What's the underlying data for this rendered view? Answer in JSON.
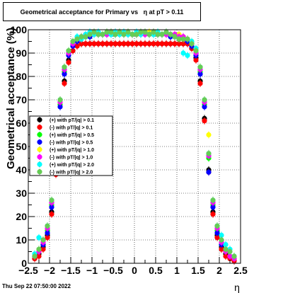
{
  "chart_data": {
    "type": "scatter",
    "title": "Geometrical acceptance for Primary vs   η at pT > 0.11",
    "xlabel": "η",
    "ylabel": "Geometrical acceptance (%)",
    "xlim": [
      -2.5,
      2.5
    ],
    "ylim": [
      0,
      100
    ],
    "x_ticks": [
      -2.5,
      -2,
      -1.5,
      -1,
      -0.5,
      0,
      0.5,
      1,
      1.5,
      2,
      2.5
    ],
    "x_tick_labels": [
      "−2.5",
      "−2",
      "−1.5",
      "−1",
      "−0.5",
      "0",
      "0.5",
      "1",
      "1.5",
      "2",
      "2.5"
    ],
    "y_ticks": [
      0,
      10,
      20,
      30,
      40,
      50,
      60,
      70,
      80,
      90,
      100
    ],
    "grid": true,
    "legend_position": "center-left",
    "series": [
      {
        "name": "(+) with pT/|q| > 0.1",
        "color": "#000000",
        "x": [
          -2.35,
          -2.25,
          -2.15,
          -2.05,
          -1.95,
          -1.85,
          -1.75,
          -1.65,
          -1.55,
          -1.45,
          -1.35,
          -1.25,
          -1.15,
          -1.05,
          -0.95,
          -0.85,
          -0.75,
          -0.65,
          -0.55,
          -0.45,
          -0.35,
          -0.25,
          -0.15,
          -0.05,
          0.05,
          0.15,
          0.25,
          0.35,
          0.45,
          0.55,
          0.65,
          0.75,
          0.85,
          0.95,
          1.05,
          1.15,
          1.25,
          1.35,
          1.45,
          1.55,
          1.65,
          1.75,
          1.85,
          1.95,
          2.05,
          2.15,
          2.25,
          2.35
        ],
        "y": [
          2,
          4,
          7,
          12,
          22,
          40,
          62,
          78,
          87,
          91,
          93,
          94,
          94,
          94,
          94,
          94,
          94,
          94,
          94,
          94,
          94,
          94,
          94,
          94,
          94,
          94,
          94,
          94,
          94,
          94,
          94,
          94,
          94,
          94,
          94,
          94,
          94,
          92,
          88,
          78,
          62,
          40,
          22,
          12,
          7,
          4,
          2,
          1
        ]
      },
      {
        "name": "(-) with pT/|q| > 0.1",
        "color": "#ff0000",
        "x": [
          -2.35,
          -2.25,
          -2.15,
          -2.05,
          -1.95,
          -1.85,
          -1.75,
          -1.65,
          -1.55,
          -1.45,
          -1.35,
          -1.25,
          -1.15,
          -1.05,
          -0.95,
          -0.85,
          -0.75,
          -0.65,
          -0.55,
          -0.45,
          -0.35,
          -0.25,
          -0.15,
          -0.05,
          0.05,
          0.15,
          0.25,
          0.35,
          0.45,
          0.55,
          0.65,
          0.75,
          0.85,
          0.95,
          1.05,
          1.15,
          1.25,
          1.35,
          1.45,
          1.55,
          1.65,
          1.75,
          1.85,
          1.95,
          2.05,
          2.15,
          2.25,
          2.35
        ],
        "y": [
          2,
          3,
          6,
          11,
          21,
          38,
          60,
          77,
          86,
          91,
          93,
          94,
          94,
          94,
          94,
          94,
          94,
          94,
          94,
          94,
          94,
          94,
          94,
          94,
          94,
          94,
          94,
          94,
          94,
          94,
          94,
          94,
          94,
          94,
          94,
          94,
          94,
          92,
          87,
          77,
          61,
          39,
          21,
          11,
          6,
          3,
          2,
          1
        ]
      },
      {
        "name": "(+) with pT/|q| > 0.5",
        "color": "#00ff00",
        "x": [
          -2.35,
          -2.25,
          -2.15,
          -2.05,
          -1.95,
          -1.85,
          -1.75,
          -1.65,
          -1.55,
          -1.45,
          -1.35,
          -1.25,
          -1.15,
          -1.05,
          -0.95,
          -0.85,
          -0.75,
          -0.65,
          -0.55,
          -0.45,
          -0.35,
          -0.25,
          -0.15,
          -0.05,
          0.05,
          0.15,
          0.25,
          0.35,
          0.45,
          0.55,
          0.65,
          0.75,
          0.85,
          0.95,
          1.05,
          1.15,
          1.25,
          1.35,
          1.45,
          1.55,
          1.65,
          1.75,
          1.85,
          1.95,
          2.05,
          2.15,
          2.25,
          2.35
        ],
        "y": [
          3,
          5,
          8,
          14,
          25,
          45,
          68,
          82,
          90,
          94,
          96,
          97,
          97,
          98,
          98,
          98,
          98,
          98,
          98,
          98,
          98,
          98,
          98,
          98,
          98,
          98,
          98,
          98,
          98,
          98,
          98,
          98,
          98,
          97,
          97,
          97,
          96,
          94,
          90,
          82,
          68,
          45,
          25,
          14,
          8,
          5,
          3,
          2
        ]
      },
      {
        "name": "(-) with pT/|q| > 0.5",
        "color": "#0000ff",
        "x": [
          -2.35,
          -2.25,
          -2.15,
          -2.05,
          -1.95,
          -1.85,
          -1.75,
          -1.65,
          -1.55,
          -1.45,
          -1.35,
          -1.25,
          -1.15,
          -1.05,
          -0.95,
          -0.85,
          -0.75,
          -0.65,
          -0.55,
          -0.45,
          -0.35,
          -0.25,
          -0.15,
          -0.05,
          0.05,
          0.15,
          0.25,
          0.35,
          0.45,
          0.55,
          0.65,
          0.75,
          0.85,
          0.95,
          1.05,
          1.15,
          1.25,
          1.35,
          1.45,
          1.55,
          1.65,
          1.75,
          1.85,
          1.95,
          2.05,
          2.15,
          2.25,
          2.35
        ],
        "y": [
          3,
          5,
          8,
          13,
          24,
          44,
          67,
          81,
          89,
          93,
          95,
          97,
          97,
          97,
          98,
          98,
          98,
          98,
          98,
          98,
          98,
          98,
          98,
          98,
          98,
          98,
          98,
          98,
          98,
          98,
          98,
          98,
          97,
          97,
          97,
          97,
          95,
          93,
          89,
          81,
          67,
          39,
          24,
          13,
          8,
          5,
          3,
          2
        ]
      },
      {
        "name": "(+) with pT/|q| > 1.0",
        "color": "#ffff00",
        "x": [
          -2.35,
          -2.25,
          -2.15,
          -2.05,
          -1.95,
          -1.85,
          -1.75,
          -1.65,
          -1.55,
          -1.45,
          -1.35,
          -1.25,
          -1.15,
          -1.05,
          -0.95,
          -0.85,
          -0.75,
          -0.65,
          -0.55,
          -0.45,
          -0.35,
          -0.25,
          -0.15,
          -0.05,
          0.05,
          0.15,
          0.25,
          0.35,
          0.45,
          0.55,
          0.65,
          0.75,
          0.85,
          0.95,
          1.05,
          1.15,
          1.25,
          1.35,
          1.45,
          1.55,
          1.65,
          1.75,
          1.85,
          1.95,
          2.05,
          2.15,
          2.25,
          2.35
        ],
        "y": [
          3,
          5,
          9,
          15,
          26,
          46,
          69,
          83,
          91,
          95,
          96,
          97,
          98,
          98,
          98,
          98,
          98,
          99,
          99,
          99,
          98,
          98,
          98,
          98,
          98,
          98,
          98,
          99,
          99,
          99,
          98,
          98,
          98,
          98,
          98,
          97,
          96,
          95,
          91,
          83,
          69,
          55,
          26,
          15,
          9,
          5,
          3,
          2
        ]
      },
      {
        "name": "(-) with pT/|q| > 1.0",
        "color": "#ff00ff",
        "x": [
          -2.35,
          -2.25,
          -2.15,
          -2.05,
          -1.95,
          -1.85,
          -1.75,
          -1.65,
          -1.55,
          -1.45,
          -1.35,
          -1.25,
          -1.15,
          -1.05,
          -0.95,
          -0.85,
          -0.75,
          -0.65,
          -0.55,
          -0.45,
          -0.35,
          -0.25,
          -0.15,
          -0.05,
          0.05,
          0.15,
          0.25,
          0.35,
          0.45,
          0.55,
          0.65,
          0.75,
          0.85,
          0.95,
          1.05,
          1.15,
          1.25,
          1.35,
          1.45,
          1.55,
          1.65,
          1.75,
          1.85,
          1.95,
          2.05,
          2.15,
          2.25,
          2.35
        ],
        "y": [
          3,
          5,
          9,
          15,
          26,
          46,
          69,
          83,
          90,
          94,
          96,
          97,
          98,
          98,
          98,
          98,
          98,
          98,
          99,
          99,
          98,
          98,
          98,
          98,
          98,
          98,
          98,
          98,
          99,
          98,
          98,
          98,
          98,
          98,
          97,
          97,
          96,
          94,
          90,
          83,
          69,
          46,
          26,
          15,
          9,
          5,
          3,
          2
        ]
      },
      {
        "name": "(+) with pT/|q| > 2.0",
        "color": "#00ffff",
        "x": [
          -2.35,
          -2.25,
          -2.15,
          -2.05,
          -1.95,
          -1.85,
          -1.75,
          -1.65,
          -1.55,
          -1.45,
          -1.35,
          -1.25,
          -1.15,
          -1.05,
          -0.95,
          -0.85,
          -0.75,
          -0.65,
          -0.55,
          -0.45,
          -0.35,
          -0.25,
          -0.15,
          -0.05,
          0.05,
          0.15,
          0.25,
          0.35,
          0.45,
          0.55,
          0.65,
          0.75,
          0.85,
          0.95,
          1.05,
          1.15,
          1.25,
          1.35,
          1.45,
          1.55,
          1.65,
          1.75,
          1.85,
          1.95,
          2.05,
          2.15,
          2.25,
          2.35
        ],
        "y": [
          4,
          11,
          10,
          16,
          27,
          47,
          70,
          84,
          91,
          95,
          97,
          96,
          98,
          99,
          98,
          99,
          98,
          99,
          98,
          99,
          98,
          99,
          98,
          98,
          99,
          98,
          99,
          98,
          98,
          99,
          98,
          99,
          98,
          97,
          96,
          90,
          89,
          95,
          92,
          84,
          70,
          47,
          27,
          16,
          12,
          8,
          6,
          3
        ]
      },
      {
        "name": "(-) with pT/|q| > 2.0",
        "color": "#66cc55",
        "x": [
          -2.35,
          -2.25,
          -2.15,
          -2.05,
          -1.95,
          -1.85,
          -1.75,
          -1.65,
          -1.55,
          -1.45,
          -1.35,
          -1.25,
          -1.15,
          -1.05,
          -0.95,
          -0.85,
          -0.75,
          -0.65,
          -0.55,
          -0.45,
          -0.35,
          -0.25,
          -0.15,
          -0.05,
          0.05,
          0.15,
          0.25,
          0.35,
          0.45,
          0.55,
          0.65,
          0.75,
          0.85,
          0.95,
          1.05,
          1.15,
          1.25,
          1.35,
          1.45,
          1.55,
          1.65,
          1.75,
          1.85,
          1.95,
          2.05,
          2.15,
          2.25,
          2.35
        ],
        "y": [
          3,
          6,
          10,
          16,
          27,
          47,
          70,
          84,
          91,
          95,
          96,
          97,
          97,
          98,
          99,
          98,
          98,
          99,
          99,
          98,
          99,
          98,
          99,
          98,
          98,
          99,
          99,
          98,
          99,
          98,
          98,
          99,
          98,
          97,
          96,
          96,
          96,
          94,
          91,
          84,
          70,
          47,
          27,
          16,
          10,
          6,
          5,
          3
        ]
      }
    ]
  },
  "timestamp": "Thu Sep 22 07:50:00 2022"
}
